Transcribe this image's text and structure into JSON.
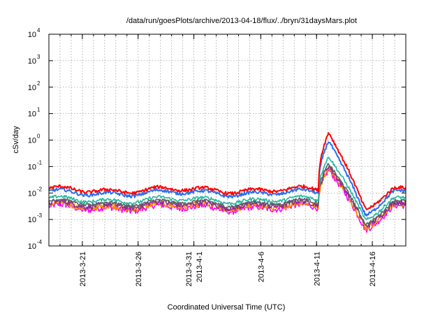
{
  "chart_data": {
    "type": "line",
    "title": "/data/run/goesPlots/archive/2013-04-18/flux/../bryn/31daysMars.plot",
    "xlabel": "Coordinated Universal Time (UTC)",
    "ylabel": "cSv/day",
    "yscale": "log",
    "ylim": [
      0.0001,
      10000
    ],
    "xlim": [
      "2013-03-18",
      "2013-04-19"
    ],
    "y_ticks": [
      {
        "base": "10",
        "exp": "-4",
        "value": 0.0001
      },
      {
        "base": "10",
        "exp": "-3",
        "value": 0.001
      },
      {
        "base": "10",
        "exp": "-2",
        "value": 0.01
      },
      {
        "base": "10",
        "exp": "-1",
        "value": 0.1
      },
      {
        "base": "10",
        "exp": "0",
        "value": 1
      },
      {
        "base": "10",
        "exp": "1",
        "value": 10
      },
      {
        "base": "10",
        "exp": "2",
        "value": 100
      },
      {
        "base": "10",
        "exp": "3",
        "value": 1000
      },
      {
        "base": "10",
        "exp": "4",
        "value": 10000
      }
    ],
    "x_ticks": [
      {
        "date": "2013-03-21",
        "labels": [
          "2013-3-21"
        ]
      },
      {
        "date": "2013-03-26",
        "labels": [
          "2013-3-26"
        ]
      },
      {
        "date": "2013-03-31",
        "labels": [
          "2013-3-31",
          "2013-4-1"
        ]
      },
      {
        "date": "2013-04-06",
        "labels": [
          "2013-4-6"
        ]
      },
      {
        "date": "2013-04-11",
        "labels": [
          "2013-4-11"
        ]
      },
      {
        "date": "2013-04-16",
        "labels": [
          "2013-4-16"
        ]
      }
    ],
    "grid": true,
    "legend": "none",
    "series": [
      {
        "color": "#ff0000",
        "baseline": 0.013,
        "event_peak": 2.3,
        "event_after": 0.003
      },
      {
        "color": "#2a6ef0",
        "baseline": 0.01,
        "event_peak": 1.1,
        "event_after": 0.0018
      },
      {
        "color": "#20b8a0",
        "baseline": 0.0055,
        "event_peak": 0.28,
        "event_after": 0.0012
      },
      {
        "color": "#606060",
        "baseline": 0.0042,
        "event_peak": 0.15,
        "event_after": 0.0008
      },
      {
        "color": "#8a2a9a",
        "baseline": 0.0036,
        "event_peak": 0.13,
        "event_after": 0.0007
      },
      {
        "color": "#ff8c00",
        "baseline": 0.0031,
        "event_peak": 0.11,
        "event_after": 0.0006
      },
      {
        "color": "#ff00ff",
        "baseline": 0.0027,
        "event_peak": 0.09,
        "event_after": 0.0005
      }
    ],
    "event": {
      "start": "2013-04-11",
      "peak": "2013-04-12",
      "end": "2013-04-15"
    }
  }
}
